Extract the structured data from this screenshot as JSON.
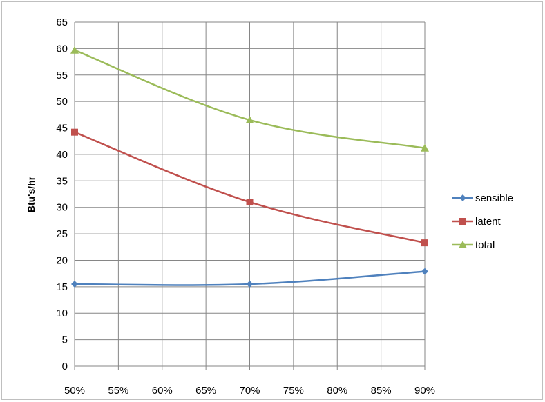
{
  "chart_data": {
    "type": "line",
    "title": "",
    "xlabel": "",
    "ylabel": "Btu's/hr",
    "categories": [
      "50%",
      "55%",
      "60%",
      "65%",
      "70%",
      "75%",
      "80%",
      "85%",
      "90%"
    ],
    "ylim": [
      0,
      65
    ],
    "yticks": [
      "0",
      "5",
      "10",
      "15",
      "20",
      "25",
      "30",
      "35",
      "40",
      "45",
      "50",
      "55",
      "60",
      "65"
    ],
    "grid": true,
    "legend": "right",
    "series": [
      {
        "name": "sensible",
        "color": "#4f81bd",
        "marker": "diamond",
        "x": [
          50,
          70,
          90
        ],
        "values": [
          15.5,
          15.5,
          17.9
        ]
      },
      {
        "name": "latent",
        "color": "#c0504d",
        "marker": "square",
        "x": [
          50,
          70,
          90
        ],
        "values": [
          44.2,
          31.0,
          23.3
        ]
      },
      {
        "name": "total",
        "color": "#9bbb59",
        "marker": "triangle",
        "x": [
          50,
          70,
          90
        ],
        "values": [
          59.7,
          46.5,
          41.2
        ]
      }
    ]
  }
}
